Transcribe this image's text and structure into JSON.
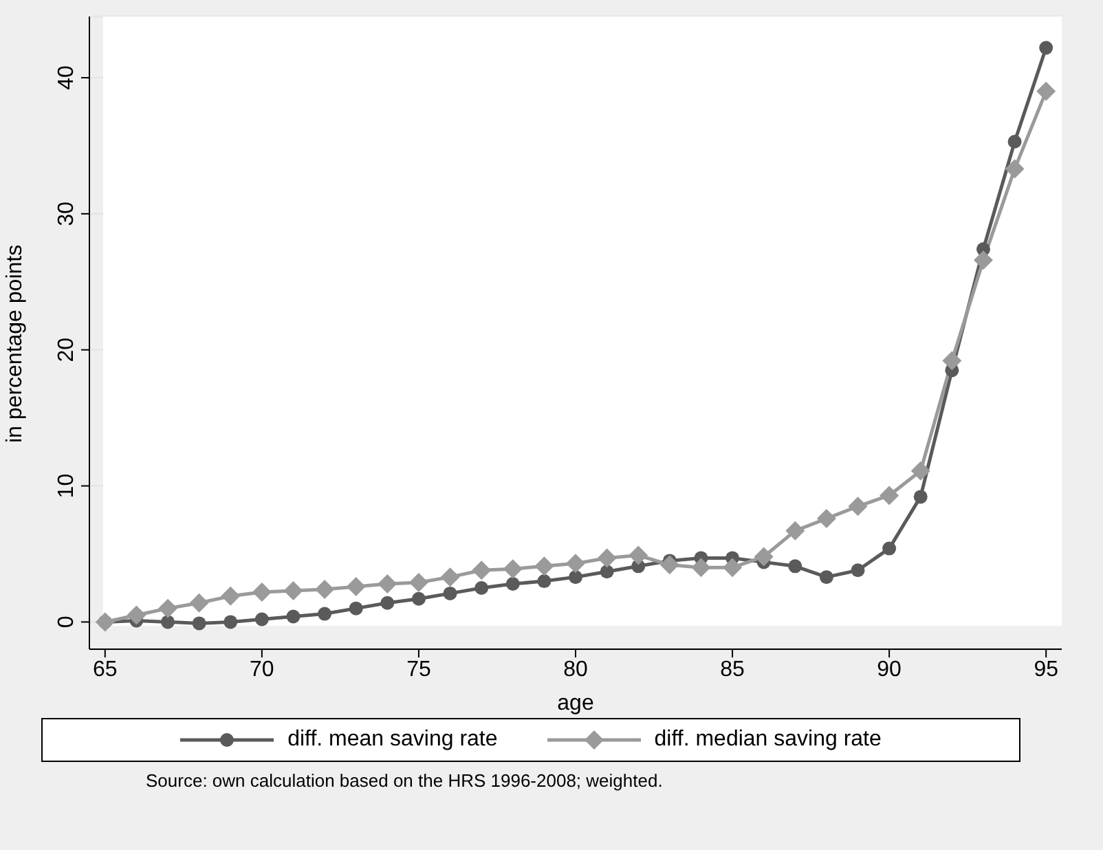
{
  "chart_data": {
    "type": "line",
    "xlabel": "age",
    "ylabel": "in percentage points",
    "x": [
      65,
      66,
      67,
      68,
      69,
      70,
      71,
      72,
      73,
      74,
      75,
      76,
      77,
      78,
      79,
      80,
      81,
      82,
      83,
      84,
      85,
      86,
      87,
      88,
      89,
      90,
      91,
      92,
      93,
      94,
      95
    ],
    "series": [
      {
        "name": "diff. mean saving rate",
        "color": "#5a5a5a",
        "marker": "circle",
        "values": [
          0,
          0.1,
          0,
          -0.1,
          0,
          0.2,
          0.4,
          0.6,
          1,
          1.4,
          1.7,
          2.1,
          2.5,
          2.8,
          3,
          3.3,
          3.7,
          4.1,
          4.5,
          4.7,
          4.7,
          4.4,
          4.1,
          3.3,
          3.8,
          5.4,
          9.2,
          18.5,
          27.4,
          35.3,
          42.2
        ]
      },
      {
        "name": "diff. median saving rate",
        "color": "#9a9a9a",
        "marker": "diamond",
        "values": [
          0,
          0.5,
          1,
          1.4,
          1.9,
          2.2,
          2.3,
          2.4,
          2.6,
          2.8,
          2.9,
          3.3,
          3.8,
          3.9,
          4.1,
          4.3,
          4.7,
          4.9,
          4.2,
          4,
          4,
          4.8,
          6.7,
          7.6,
          8.5,
          9.3,
          11.1,
          19.2,
          26.6,
          33.3,
          39
        ]
      }
    ],
    "xlim": [
      64.5,
      95.5
    ],
    "xticks": [
      65,
      70,
      75,
      80,
      85,
      90,
      95
    ],
    "ylim": [
      -2,
      44.5
    ],
    "yticks": [
      0,
      10,
      20,
      30,
      40
    ],
    "grid": "y",
    "legend": "bottom",
    "line_style": "solid",
    "annotations": [
      "Source: own calculation based on the HRS 1996-2008; weighted."
    ]
  }
}
